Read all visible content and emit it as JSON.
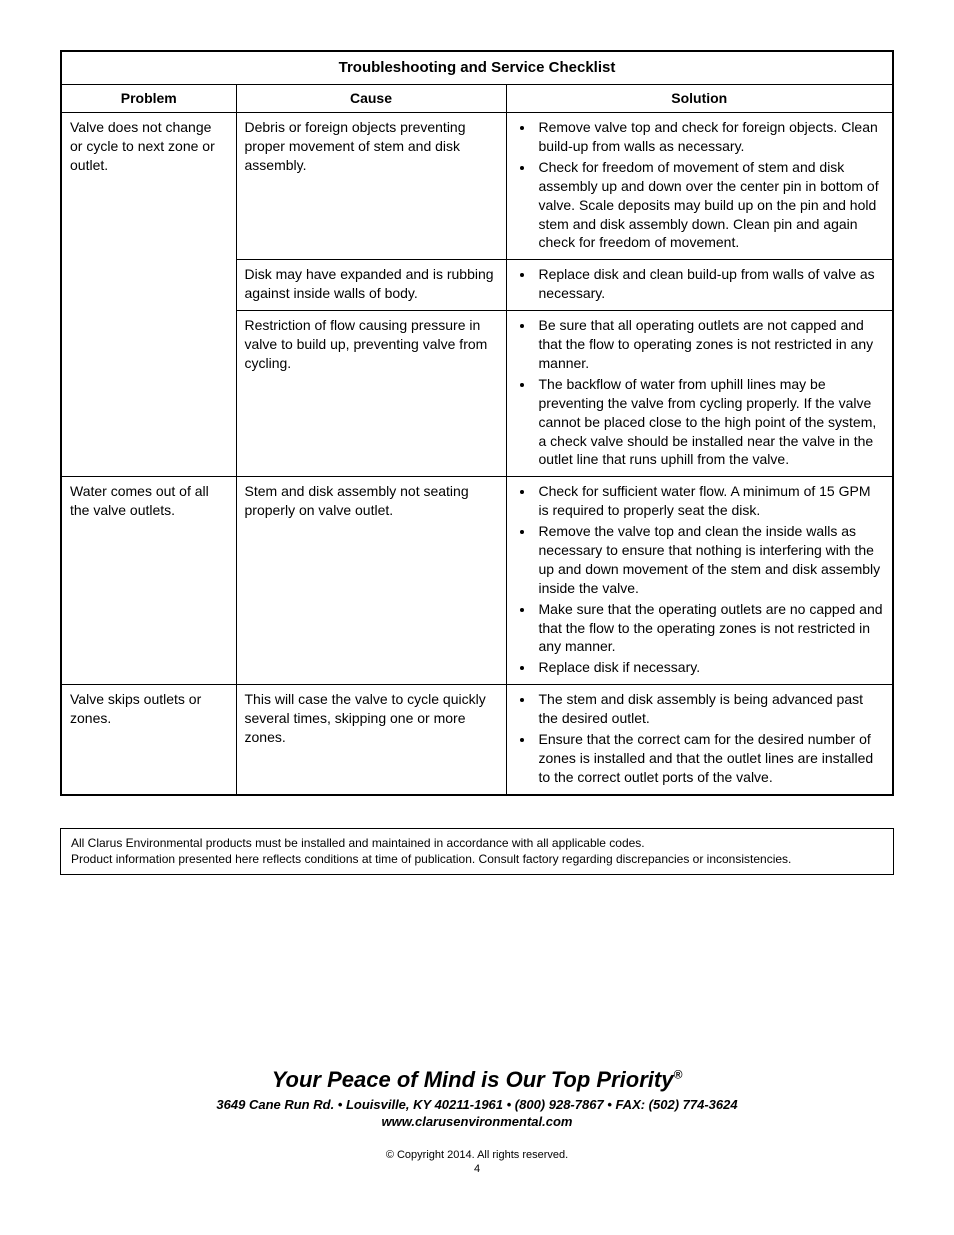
{
  "table_title": "Troubleshooting and Service Checklist",
  "columns": {
    "problem": "Problem",
    "cause": "Cause",
    "solution": "Solution"
  },
  "rows": [
    {
      "problem": "Valve does not change or cycle to next zone or outlet.",
      "problem_rowspan": 3,
      "cause": "Debris or foreign objects preventing proper movement of stem and disk assembly.",
      "solution": [
        "Remove valve top and check for foreign objects. Clean build-up from walls as necessary.",
        "Check for freedom of movement of stem and disk assembly up and down over the center pin in bottom of valve. Scale deposits may build up on the pin and hold stem and disk assembly down. Clean pin and again check for freedom of movement."
      ]
    },
    {
      "cause": "Disk may have expanded and is rubbing against inside walls of body.",
      "solution": [
        "Replace disk and clean build-up from walls of valve as necessary."
      ]
    },
    {
      "cause": "Restriction of flow causing pressure in valve to build up, preventing valve from cycling.",
      "solution": [
        "Be sure that all operating outlets are not capped and that the flow to operating zones is not restricted in any manner.",
        "The backflow of water from uphill lines may be preventing the valve from cycling properly. If the valve cannot be placed close to the high point of the system, a check valve should be installed near the valve in the outlet line that runs uphill from the valve."
      ]
    },
    {
      "problem": "Water comes out of all the valve outlets.",
      "problem_rowspan": 1,
      "cause": "Stem and disk assembly not seating properly on valve outlet.",
      "solution": [
        "Check for sufficient water flow. A minimum of 15 GPM is required to properly seat the disk.",
        "Remove the valve top and clean the inside walls as necessary to ensure that nothing is interfering with the up and down movement of the stem and disk assembly inside the valve.",
        "Make sure that the operating outlets are no capped and that the flow to the operating zones is not restricted in any manner.",
        "Replace disk if necessary."
      ]
    },
    {
      "problem": "Valve skips outlets or zones.",
      "problem_rowspan": 1,
      "cause": "This will case the valve to cycle quickly several times, skipping one or more zones.",
      "solution": [
        "The stem and disk assembly is being advanced past the desired outlet.",
        "Ensure that the correct cam for the desired number of zones is installed and that the outlet lines are installed to the correct outlet ports of the valve."
      ]
    }
  ],
  "notes": [
    "All Clarus Environmental products must be installed and maintained in accordance with all applicable codes.",
    "Product information presented here reflects conditions at time of publication.  Consult factory regarding discrepancies or inconsistencies."
  ],
  "footer": {
    "tagline": "Your Peace of Mind is Our Top Priority",
    "reg_mark": "®",
    "address": "3649 Cane Run Rd. • Louisville, KY 40211-1961 • (800) 928-7867 • FAX: (502) 774-3624",
    "website": "www.clarusenvironmental.com",
    "copyright": "© Copyright 2014. All rights reserved.",
    "page_number": "4"
  }
}
